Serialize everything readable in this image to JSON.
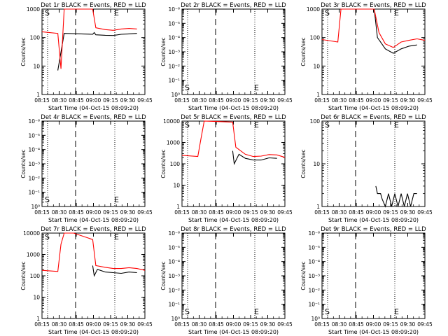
{
  "chart_data": [
    {
      "type": "line",
      "title": "Det 1r BLACK = Events, RED = LLD",
      "xlabel": "Start Time (04-Oct-15 08:09:20)",
      "ylabel": "Counts/sec",
      "log_y": true,
      "ytick_labels": [
        "1",
        "10",
        "100",
        "1000"
      ],
      "xtick_labels": [
        "08:15",
        "08:30",
        "08:45",
        "09:00",
        "09:15",
        "09:30",
        "09:45"
      ],
      "markers": [
        "S",
        "E"
      ],
      "series": [
        {
          "color": "#000000",
          "x": [
            1.0,
            1.4,
            3.2,
            3.3,
            3.4,
            4.0,
            4.5,
            5.0,
            5.5,
            6.0
          ],
          "y": [
            7,
            140,
            130,
            150,
            125,
            120,
            118,
            130,
            135,
            140
          ]
        },
        {
          "color": "#ff0000",
          "x": [
            0.0,
            1.0,
            1.2,
            1.4,
            3.2,
            3.4,
            4.0,
            4.5,
            5.0,
            5.5,
            6.0
          ],
          "y": [
            160,
            140,
            8,
            1100,
            1100,
            220,
            190,
            180,
            200,
            210,
            200
          ]
        }
      ]
    },
    {
      "type": "line",
      "title": "Det 2r BLACK = Events, RED = LLD",
      "xlabel": "Start Time (04-Oct-15 08:09:20)",
      "ylabel": "Counts/sec",
      "log_y": true,
      "ytick_labels": [
        "10⁰",
        "10⁻¹",
        "10⁻²",
        "10⁻³",
        "10⁻⁴",
        "10⁻⁵",
        "10⁻⁶"
      ],
      "xtick_labels": [
        "08:15",
        "08:30",
        "08:45",
        "09:00",
        "09:15",
        "09:30",
        "09:45"
      ],
      "markers": [
        "S",
        "E"
      ],
      "series": []
    },
    {
      "type": "line",
      "title": "Det 3r BLACK = Events, RED = LLD",
      "xlabel": "Start Time (04-Oct-15 08:09:20)",
      "ylabel": "Counts/sec",
      "log_y": true,
      "ytick_labels": [
        "1",
        "10",
        "100",
        "1000"
      ],
      "xtick_labels": [
        "08:15",
        "08:30",
        "08:45",
        "09:00",
        "09:15",
        "09:30",
        "09:45"
      ],
      "markers": [
        "S",
        "E"
      ],
      "series": [
        {
          "color": "#000000",
          "x": [
            3.3,
            3.5,
            4.0,
            4.5,
            5.0,
            5.5,
            6.0
          ],
          "y": [
            1000,
            100,
            40,
            28,
            40,
            50,
            55
          ]
        },
        {
          "color": "#ff0000",
          "x": [
            0.0,
            1.0,
            1.2,
            1.4,
            3.3,
            3.6,
            4.0,
            4.5,
            5.0,
            5.5,
            6.0,
            6.5
          ],
          "y": [
            85,
            70,
            1000,
            1500,
            1000,
            150,
            60,
            45,
            70,
            80,
            90,
            80
          ]
        }
      ]
    },
    {
      "type": "line",
      "title": "Det 4r BLACK = Events, RED = LLD",
      "xlabel": "Start Time (04-Oct-15 08:09:20)",
      "ylabel": "Counts/sec",
      "log_y": true,
      "ytick_labels": [
        "10⁰",
        "10⁻¹",
        "10⁻²",
        "10⁻³",
        "10⁻⁴",
        "10⁻⁵",
        "10⁻⁶"
      ],
      "xtick_labels": [
        "08:15",
        "08:30",
        "08:45",
        "09:00",
        "09:15",
        "09:30",
        "09:45"
      ],
      "markers": [
        "S",
        "E"
      ],
      "series": []
    },
    {
      "type": "line",
      "title": "Det 5r BLACK = Events, RED = LLD",
      "xlabel": "Start Time (04-Oct-15 08:09:20)",
      "ylabel": "Counts/sec",
      "log_y": true,
      "ytick_labels": [
        "1",
        "10",
        "100",
        "1000",
        "10000"
      ],
      "xtick_labels": [
        "08:15",
        "08:30",
        "08:45",
        "09:00",
        "09:15",
        "09:30",
        "09:45"
      ],
      "markers": [
        "S",
        "E"
      ],
      "series": [
        {
          "color": "#000000",
          "x": [
            3.2,
            3.3,
            3.6,
            4.0,
            4.5,
            5.0,
            5.5,
            6.0
          ],
          "y": [
            400,
            100,
            280,
            180,
            150,
            150,
            190,
            180
          ]
        },
        {
          "color": "#ff0000",
          "x": [
            0.0,
            1.0,
            1.2,
            1.4,
            3.2,
            3.4,
            4.0,
            4.5,
            5.0,
            5.5,
            6.0,
            6.5
          ],
          "y": [
            250,
            220,
            1500,
            10000,
            9000,
            600,
            280,
            220,
            230,
            270,
            260,
            200
          ]
        }
      ]
    },
    {
      "type": "line",
      "title": "Det 6r BLACK = Events, RED = LLD",
      "xlabel": "Start Time (04-Oct-15 08:09:20)",
      "ylabel": "Counts/sec",
      "log_y": true,
      "ytick_labels": [
        "1",
        "10",
        "100"
      ],
      "xtick_labels": [
        "08:15",
        "08:30",
        "08:45",
        "09:00",
        "09:15",
        "09:30",
        "09:45"
      ],
      "markers": [
        "S",
        "E"
      ],
      "series": [
        {
          "color": "#000000",
          "x": [
            3.4,
            3.5,
            3.7,
            3.8,
            4.0,
            4.2,
            4.4,
            4.6,
            4.8,
            5.0,
            5.2,
            5.4,
            5.6,
            5.8,
            6.0
          ],
          "y": [
            3,
            2,
            2,
            1.5,
            1,
            2,
            1,
            2,
            1,
            2,
            1,
            2,
            1,
            2,
            2
          ]
        }
      ]
    },
    {
      "type": "line",
      "title": "Det 7r BLACK = Events, RED = LLD",
      "xlabel": "Start Time (04-Oct-15 08:09:20)",
      "ylabel": "Counts/sec",
      "log_y": true,
      "ytick_labels": [
        "1",
        "10",
        "100",
        "1000",
        "10000"
      ],
      "xtick_labels": [
        "08:15",
        "08:30",
        "08:45",
        "09:00",
        "09:15",
        "09:30",
        "09:45"
      ],
      "markers": [
        "S",
        "E"
      ],
      "series": [
        {
          "color": "#000000",
          "x": [
            3.2,
            3.3,
            3.5,
            4.0,
            4.5,
            5.0,
            5.5,
            6.0
          ],
          "y": [
            300,
            100,
            200,
            150,
            140,
            130,
            150,
            140
          ]
        },
        {
          "color": "#ff0000",
          "x": [
            0.0,
            1.0,
            1.2,
            1.4,
            2.0,
            3.2,
            3.4,
            4.0,
            4.5,
            5.0,
            5.5,
            6.0,
            6.5
          ],
          "y": [
            180,
            160,
            3000,
            15000,
            12000,
            5000,
            300,
            250,
            220,
            220,
            240,
            220,
            180
          ]
        }
      ]
    },
    {
      "type": "line",
      "title": "Det 8r BLACK = Events, RED = LLD",
      "xlabel": "Start Time (04-Oct-15 08:09:20)",
      "ylabel": "Counts/sec",
      "log_y": true,
      "ytick_labels": [
        "10⁰",
        "10⁻¹",
        "10⁻²",
        "10⁻³",
        "10⁻⁴",
        "10⁻⁵",
        "10⁻⁶"
      ],
      "xtick_labels": [
        "08:15",
        "08:30",
        "08:45",
        "09:00",
        "09:15",
        "09:30",
        "09:45"
      ],
      "markers": [
        "S",
        "E"
      ],
      "series": []
    },
    {
      "type": "line",
      "title": "Det 9r BLACK = Events, RED = LLD",
      "xlabel": "Start Time (04-Oct-15 08:09:20)",
      "ylabel": "Counts/sec",
      "log_y": true,
      "ytick_labels": [
        "10⁰",
        "10⁻¹",
        "10⁻²",
        "10⁻³",
        "10⁻⁴",
        "10⁻⁵",
        "10⁻⁶"
      ],
      "xtick_labels": [
        "08:15",
        "08:30",
        "08:45",
        "09:00",
        "09:15",
        "09:30",
        "09:45"
      ],
      "markers": [
        "S",
        "E"
      ],
      "series": []
    }
  ]
}
